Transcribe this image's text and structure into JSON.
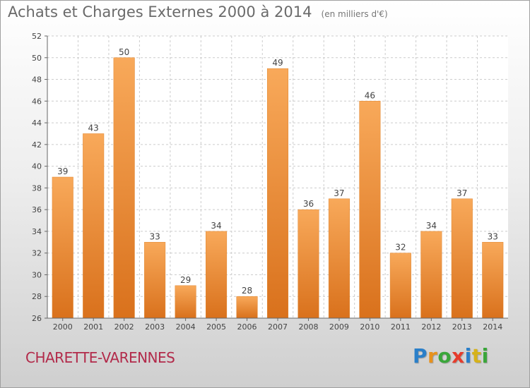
{
  "title": "Achats et Charges Externes 2000 à 2014",
  "subtitle": "(en milliers d'€)",
  "commune": "CHARETTE-VARENNES",
  "brand": {
    "text": "Proxiti",
    "letter_colors": [
      "#2a7fc9",
      "#e8921c",
      "#3aa63a",
      "#e63c2c",
      "#2a7fc9",
      "#d6b21a",
      "#3aa63a"
    ]
  },
  "colors": {
    "bar_light": "#f8a95a",
    "bar_dark": "#d9711c",
    "grid": "#cccccc",
    "axis": "#666666",
    "text": "#444444"
  },
  "chart_data": {
    "type": "bar",
    "title": "Achats et Charges Externes 2000 à 2014",
    "subtitle": "(en milliers d'€)",
    "categories": [
      "2000",
      "2001",
      "2002",
      "2003",
      "2004",
      "2005",
      "2006",
      "2007",
      "2008",
      "2009",
      "2010",
      "2011",
      "2012",
      "2013",
      "2014"
    ],
    "values": [
      39,
      43,
      50,
      33,
      29,
      34,
      28,
      49,
      36,
      37,
      46,
      32,
      34,
      37,
      33
    ],
    "ylim": [
      26,
      52
    ],
    "yticks": [
      26,
      28,
      30,
      32,
      34,
      36,
      38,
      40,
      42,
      44,
      46,
      48,
      50,
      52
    ],
    "grid": true,
    "data_labels": true
  }
}
